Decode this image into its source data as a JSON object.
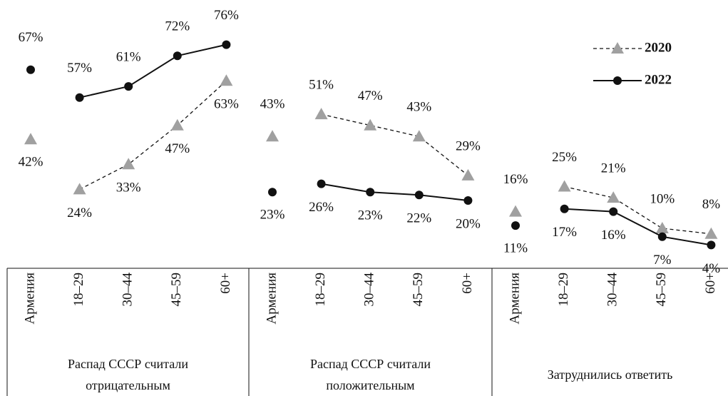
{
  "chart_data": {
    "type": "line",
    "series": [
      {
        "name": "2020",
        "color": "#a0a0a0",
        "line_style": "dashed",
        "marker": "triangle"
      },
      {
        "name": "2022",
        "color": "#111111",
        "line_style": "solid",
        "marker": "circle"
      }
    ],
    "groups": [
      {
        "name": "Распад СССР считали отрицательным",
        "overall_category": "Армения",
        "categories": [
          "18–29",
          "30–44",
          "45–59",
          "60+"
        ],
        "series": [
          {
            "overall": 42,
            "overall_label": "42%",
            "values": [
              24,
              33,
              47,
              63
            ],
            "value_labels": [
              "24%",
              "33%",
              "47%",
              "63%"
            ]
          },
          {
            "overall": 67,
            "overall_label": "67%",
            "values": [
              57,
              61,
              72,
              76
            ],
            "value_labels": [
              "57%",
              "61%",
              "72%",
              "76%"
            ]
          }
        ]
      },
      {
        "name": "Распад СССР считали положительным",
        "overall_category": "Армения",
        "categories": [
          "18–29",
          "30–44",
          "45–59",
          "60+"
        ],
        "series": [
          {
            "overall": 43,
            "overall_label": "43%",
            "values": [
              51,
              47,
              43,
              29
            ],
            "value_labels": [
              "51%",
              "47%",
              "43%",
              "29%"
            ]
          },
          {
            "overall": 23,
            "overall_label": "23%",
            "values": [
              26,
              23,
              22,
              20
            ],
            "value_labels": [
              "26%",
              "23%",
              "22%",
              "20%"
            ]
          }
        ]
      },
      {
        "name": "Затруднились ответить",
        "overall_category": "Армения",
        "categories": [
          "18–29",
          "30–44",
          "45–59",
          "60+"
        ],
        "series": [
          {
            "overall": 16,
            "overall_label": "16%",
            "values": [
              25,
              21,
              10,
              8
            ],
            "value_labels": [
              "25%",
              "21%",
              "10%",
              "8%"
            ]
          },
          {
            "overall": 11,
            "overall_label": "11%",
            "values": [
              17,
              16,
              7,
              4
            ],
            "value_labels": [
              "17%",
              "16%",
              "7%",
              "4%"
            ]
          }
        ]
      }
    ]
  }
}
